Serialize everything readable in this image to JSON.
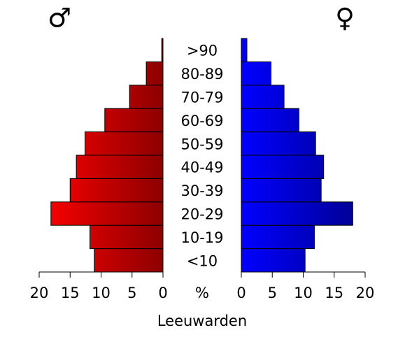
{
  "chart_data": {
    "type": "pyramid",
    "title": "Leeuwarden",
    "xlabel": "%",
    "categories": [
      "<10",
      "10-19",
      "20-29",
      "30-39",
      "40-49",
      "50-59",
      "60-69",
      "70-79",
      "80-89",
      ">90"
    ],
    "series": [
      {
        "name": "♂",
        "color": "#ff0000",
        "values": [
          11.1,
          11.8,
          18.1,
          15.0,
          14.0,
          12.6,
          9.4,
          5.4,
          2.7,
          0.2
        ]
      },
      {
        "name": "♀",
        "color": "#0000ff",
        "values": [
          10.3,
          11.8,
          18.0,
          12.9,
          13.3,
          12.0,
          9.3,
          6.9,
          4.8,
          0.9
        ]
      }
    ],
    "xlim": [
      0,
      20
    ],
    "xticks": [
      0,
      5,
      10,
      15,
      20
    ]
  }
}
